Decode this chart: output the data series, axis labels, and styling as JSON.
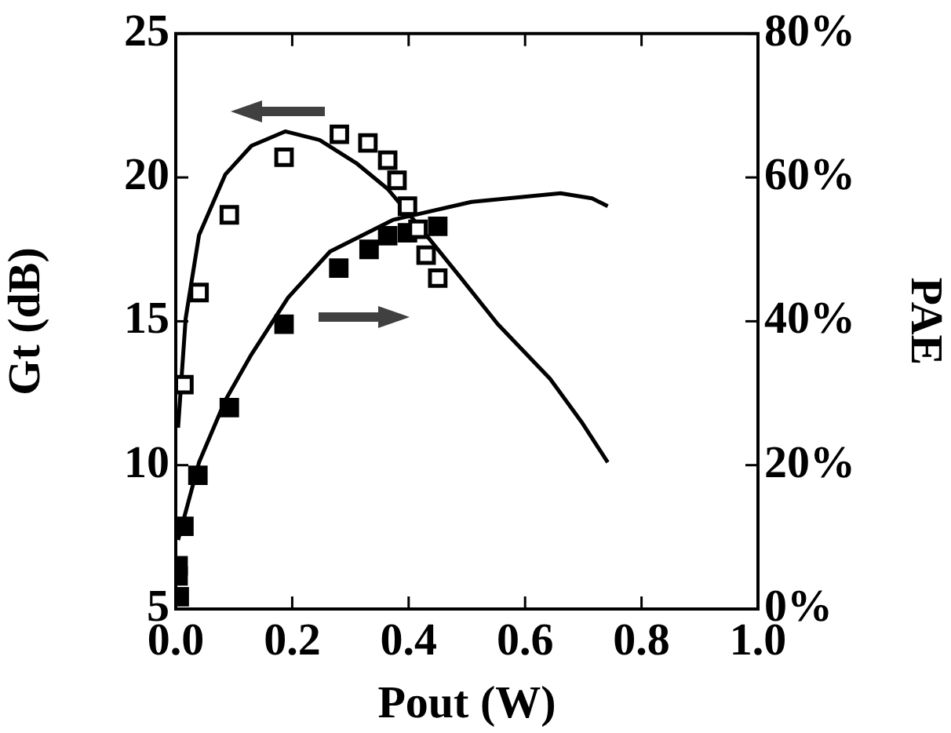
{
  "chart_data": {
    "type": "scatter",
    "xlabel": "Pout (W)",
    "ylabel": "Gt (dB)",
    "y2label": "PAE",
    "xlim": [
      0,
      1.0
    ],
    "xticks": [
      {
        "value": 0,
        "label": "0.0"
      },
      0.2,
      0.4,
      0.6,
      0.8,
      {
        "value": 1.0,
        "label": "1.0"
      }
    ],
    "ylim": [
      5,
      25
    ],
    "yticks": [
      5,
      10,
      15,
      20,
      25
    ],
    "y2lim": [
      0,
      80
    ],
    "y2ticks": [
      {
        "value": 0,
        "label": "0%"
      },
      {
        "value": 20,
        "label": "20%"
      },
      {
        "value": 40,
        "label": "40%"
      },
      {
        "value": 60,
        "label": "60%"
      },
      {
        "value": 80,
        "label": "80%"
      }
    ],
    "grid": false,
    "legend": false,
    "marker": "square",
    "series": [
      {
        "type": "scatter",
        "color": "#000000",
        "x": [
          0.014,
          0.04,
          0.092,
          0.186,
          0.281,
          0.33,
          0.364,
          0.38,
          0.398,
          0.416,
          0.43,
          0.45
        ],
        "values": [
          12.8,
          16.0,
          18.7,
          20.7,
          21.5,
          21.2,
          20.6,
          19.9,
          19.0,
          18.2,
          17.3,
          16.5
        ]
      },
      {
        "type": "scatter",
        "axis": "y2",
        "color": "#000000",
        "x": [
          0.004,
          0.004,
          0.006,
          0.014,
          0.038,
          0.092,
          0.186,
          0.28,
          0.332,
          0.364,
          0.398,
          0.416,
          0.45
        ],
        "values": [
          4.6,
          6.0,
          1.7,
          11.5,
          18.6,
          28.0,
          39.6,
          47.4,
          50.0,
          51.9,
          52.3,
          null,
          53.2
        ]
      },
      {
        "type": "line",
        "marker": "none",
        "color": "#000000",
        "x": [
          0.004,
          0.017,
          0.04,
          0.085,
          0.13,
          0.188,
          0.247,
          0.31,
          0.364,
          0.418,
          0.49,
          0.553,
          0.643,
          0.697,
          0.742
        ],
        "values": [
          11.3,
          15.1,
          18.0,
          20.1,
          21.1,
          21.6,
          21.3,
          20.5,
          19.6,
          18.3,
          16.5,
          14.9,
          13.0,
          11.5,
          10.1
        ]
      },
      {
        "type": "line",
        "marker": "none",
        "axis": "y2",
        "color": "#000000",
        "x": [
          0.004,
          0.04,
          0.085,
          0.13,
          0.193,
          0.265,
          0.373,
          0.508,
          0.661,
          0.715,
          0.742
        ],
        "values": [
          9.6,
          20.4,
          29.0,
          35.4,
          43.3,
          49.7,
          54.1,
          56.6,
          57.8,
          57.1,
          56.0
        ]
      }
    ]
  }
}
